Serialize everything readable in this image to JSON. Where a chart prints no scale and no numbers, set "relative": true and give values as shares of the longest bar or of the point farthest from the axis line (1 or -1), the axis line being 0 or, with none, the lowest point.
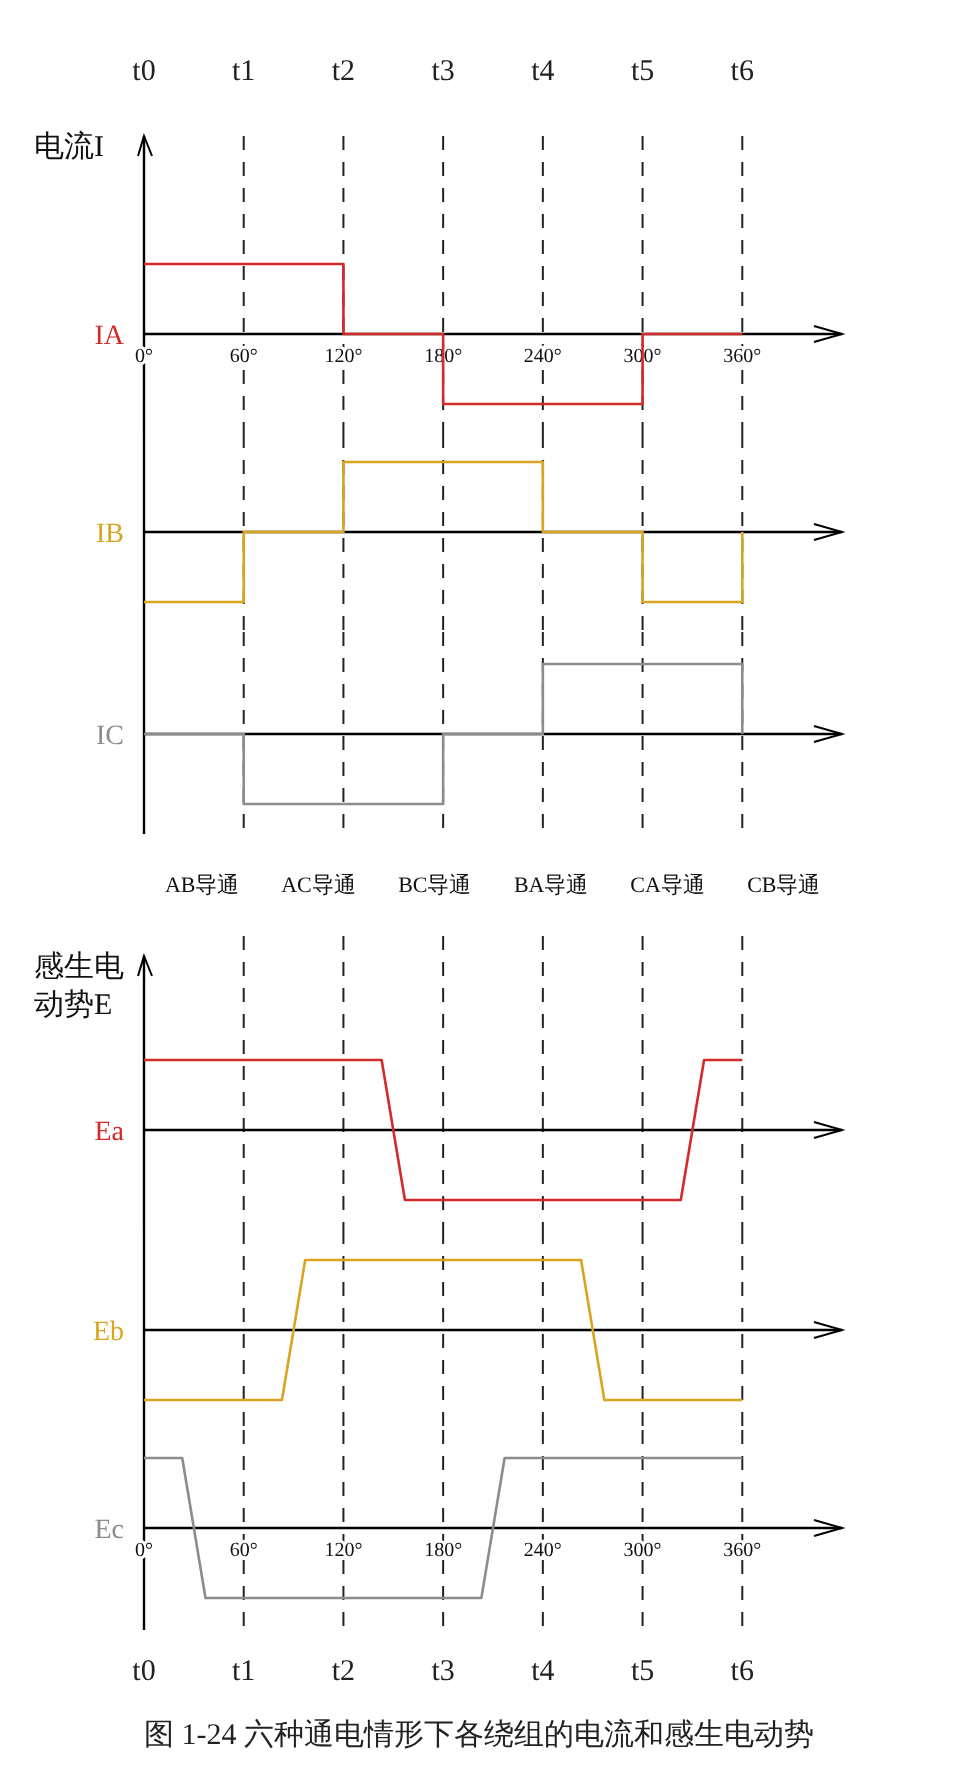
{
  "chart_data": [
    {
      "type": "line",
      "relative": true,
      "ylabel": "电流I",
      "xlim": [
        0,
        420
      ],
      "tick_labels": "x",
      "xticks": [
        {
          "value": 0,
          "label": "0°"
        },
        {
          "value": 60,
          "label": "60°"
        },
        {
          "value": 120,
          "label": "120°"
        },
        {
          "value": 180,
          "label": "180°"
        },
        {
          "value": 240,
          "label": "240°"
        },
        {
          "value": 300,
          "label": "300°"
        },
        {
          "value": 360,
          "label": "360°"
        }
      ],
      "series": [
        {
          "name": "IA",
          "color": "#d42a2a",
          "x": [
            0,
            120,
            120,
            180,
            180,
            300,
            300,
            360
          ],
          "values": [
            1,
            1,
            0,
            0,
            -1,
            -1,
            0,
            0
          ]
        }
      ],
      "ref_lines": [
        {
          "axis": "x",
          "value": 0,
          "label": "t0",
          "line_style": "solid"
        },
        {
          "axis": "x",
          "value": 60,
          "label": "t1",
          "line_style": "dashed"
        },
        {
          "axis": "x",
          "value": 120,
          "label": "t2",
          "line_style": "dashed"
        },
        {
          "axis": "x",
          "value": 180,
          "label": "t3",
          "line_style": "dashed"
        },
        {
          "axis": "x",
          "value": 240,
          "label": "t4",
          "line_style": "dashed"
        },
        {
          "axis": "x",
          "value": 300,
          "label": "t5",
          "line_style": "dashed"
        },
        {
          "axis": "x",
          "value": 360,
          "label": "t6",
          "line_style": "dashed"
        }
      ]
    },
    {
      "type": "line",
      "relative": true,
      "xlim": [
        0,
        420
      ],
      "tick_labels": false,
      "series": [
        {
          "name": "IB",
          "color": "#d9a521",
          "x": [
            0,
            60,
            60,
            120,
            120,
            240,
            240,
            300,
            300,
            360,
            360
          ],
          "values": [
            -1,
            -1,
            0,
            0,
            1,
            1,
            0,
            0,
            -1,
            -1,
            0
          ]
        }
      ],
      "ref_lines": [
        {
          "axis": "x",
          "value": 60,
          "label": null,
          "line_style": "dashed"
        },
        {
          "axis": "x",
          "value": 120,
          "label": null,
          "line_style": "dashed"
        },
        {
          "axis": "x",
          "value": 180,
          "label": null,
          "line_style": "dashed"
        },
        {
          "axis": "x",
          "value": 240,
          "label": null,
          "line_style": "dashed"
        },
        {
          "axis": "x",
          "value": 300,
          "label": null,
          "line_style": "dashed"
        },
        {
          "axis": "x",
          "value": 360,
          "label": null,
          "line_style": "dashed"
        }
      ]
    },
    {
      "type": "line",
      "relative": true,
      "xlim": [
        0,
        420
      ],
      "tick_labels": false,
      "series": [
        {
          "name": "IC",
          "color": "#8c8c8c",
          "x": [
            0,
            60,
            60,
            180,
            180,
            240,
            240,
            360,
            360
          ],
          "values": [
            0,
            0,
            -1,
            -1,
            0,
            0,
            1,
            1,
            0
          ]
        }
      ],
      "ref_lines": [
        {
          "axis": "x",
          "value": 60,
          "label": null,
          "line_style": "dashed"
        },
        {
          "axis": "x",
          "value": 120,
          "label": null,
          "line_style": "dashed"
        },
        {
          "axis": "x",
          "value": 180,
          "label": null,
          "line_style": "dashed"
        },
        {
          "axis": "x",
          "value": 240,
          "label": null,
          "line_style": "dashed"
        },
        {
          "axis": "x",
          "value": 300,
          "label": null,
          "line_style": "dashed"
        },
        {
          "axis": "x",
          "value": 360,
          "label": null,
          "line_style": "dashed"
        }
      ],
      "annotations": [
        "AB导通",
        "AC导通",
        "BC导通",
        "BA导通",
        "CA导通",
        "CB导通"
      ]
    },
    {
      "type": "line",
      "relative": true,
      "ylabel": "感生电动势E",
      "xlim": [
        0,
        420
      ],
      "tick_labels": false,
      "series": [
        {
          "name": "Ea",
          "color": "#d42a2a",
          "x": [
            0,
            143,
            157,
            323,
            337,
            360
          ],
          "values": [
            1,
            1,
            -1,
            -1,
            1,
            1
          ]
        }
      ],
      "ref_lines": [
        {
          "axis": "x",
          "value": 60,
          "label": null,
          "line_style": "dashed"
        },
        {
          "axis": "x",
          "value": 120,
          "label": null,
          "line_style": "dashed"
        },
        {
          "axis": "x",
          "value": 180,
          "label": null,
          "line_style": "dashed"
        },
        {
          "axis": "x",
          "value": 240,
          "label": null,
          "line_style": "dashed"
        },
        {
          "axis": "x",
          "value": 300,
          "label": null,
          "line_style": "dashed"
        },
        {
          "axis": "x",
          "value": 360,
          "label": null,
          "line_style": "dashed"
        }
      ]
    },
    {
      "type": "line",
      "relative": true,
      "xlim": [
        0,
        420
      ],
      "tick_labels": false,
      "series": [
        {
          "name": "Eb",
          "color": "#d9a521",
          "x": [
            0,
            83,
            97,
            263,
            277,
            360
          ],
          "values": [
            -1,
            -1,
            1,
            1,
            -1,
            -1
          ]
        }
      ],
      "ref_lines": [
        {
          "axis": "x",
          "value": 60,
          "label": null,
          "line_style": "dashed"
        },
        {
          "axis": "x",
          "value": 120,
          "label": null,
          "line_style": "dashed"
        },
        {
          "axis": "x",
          "value": 180,
          "label": null,
          "line_style": "dashed"
        },
        {
          "axis": "x",
          "value": 240,
          "label": null,
          "line_style": "dashed"
        },
        {
          "axis": "x",
          "value": 300,
          "label": null,
          "line_style": "dashed"
        },
        {
          "axis": "x",
          "value": 360,
          "label": null,
          "line_style": "dashed"
        }
      ]
    },
    {
      "type": "line",
      "relative": true,
      "xlim": [
        0,
        420
      ],
      "tick_labels": "x",
      "xticks": [
        {
          "value": 0,
          "label": "0°"
        },
        {
          "value": 60,
          "label": "60°"
        },
        {
          "value": 120,
          "label": "120°"
        },
        {
          "value": 180,
          "label": "180°"
        },
        {
          "value": 240,
          "label": "240°"
        },
        {
          "value": 300,
          "label": "300°"
        },
        {
          "value": 360,
          "label": "360°"
        }
      ],
      "series": [
        {
          "name": "Ec",
          "color": "#8c8c8c",
          "x": [
            0,
            23,
            37,
            203,
            217,
            360
          ],
          "values": [
            1,
            1,
            -1,
            -1,
            1,
            1
          ]
        }
      ],
      "ref_lines": [
        {
          "axis": "x",
          "value": 0,
          "label": "t0",
          "line_style": "solid"
        },
        {
          "axis": "x",
          "value": 60,
          "label": "t1",
          "line_style": "dashed"
        },
        {
          "axis": "x",
          "value": 120,
          "label": "t2",
          "line_style": "dashed"
        },
        {
          "axis": "x",
          "value": 180,
          "label": "t3",
          "line_style": "dashed"
        },
        {
          "axis": "x",
          "value": 240,
          "label": "t4",
          "line_style": "dashed"
        },
        {
          "axis": "x",
          "value": 300,
          "label": "t5",
          "line_style": "dashed"
        },
        {
          "axis": "x",
          "value": 360,
          "label": "t6",
          "line_style": "dashed"
        }
      ],
      "annotations": [
        "图 1-24  六种通电情形下各绕组的电流和感生电动势"
      ]
    }
  ]
}
